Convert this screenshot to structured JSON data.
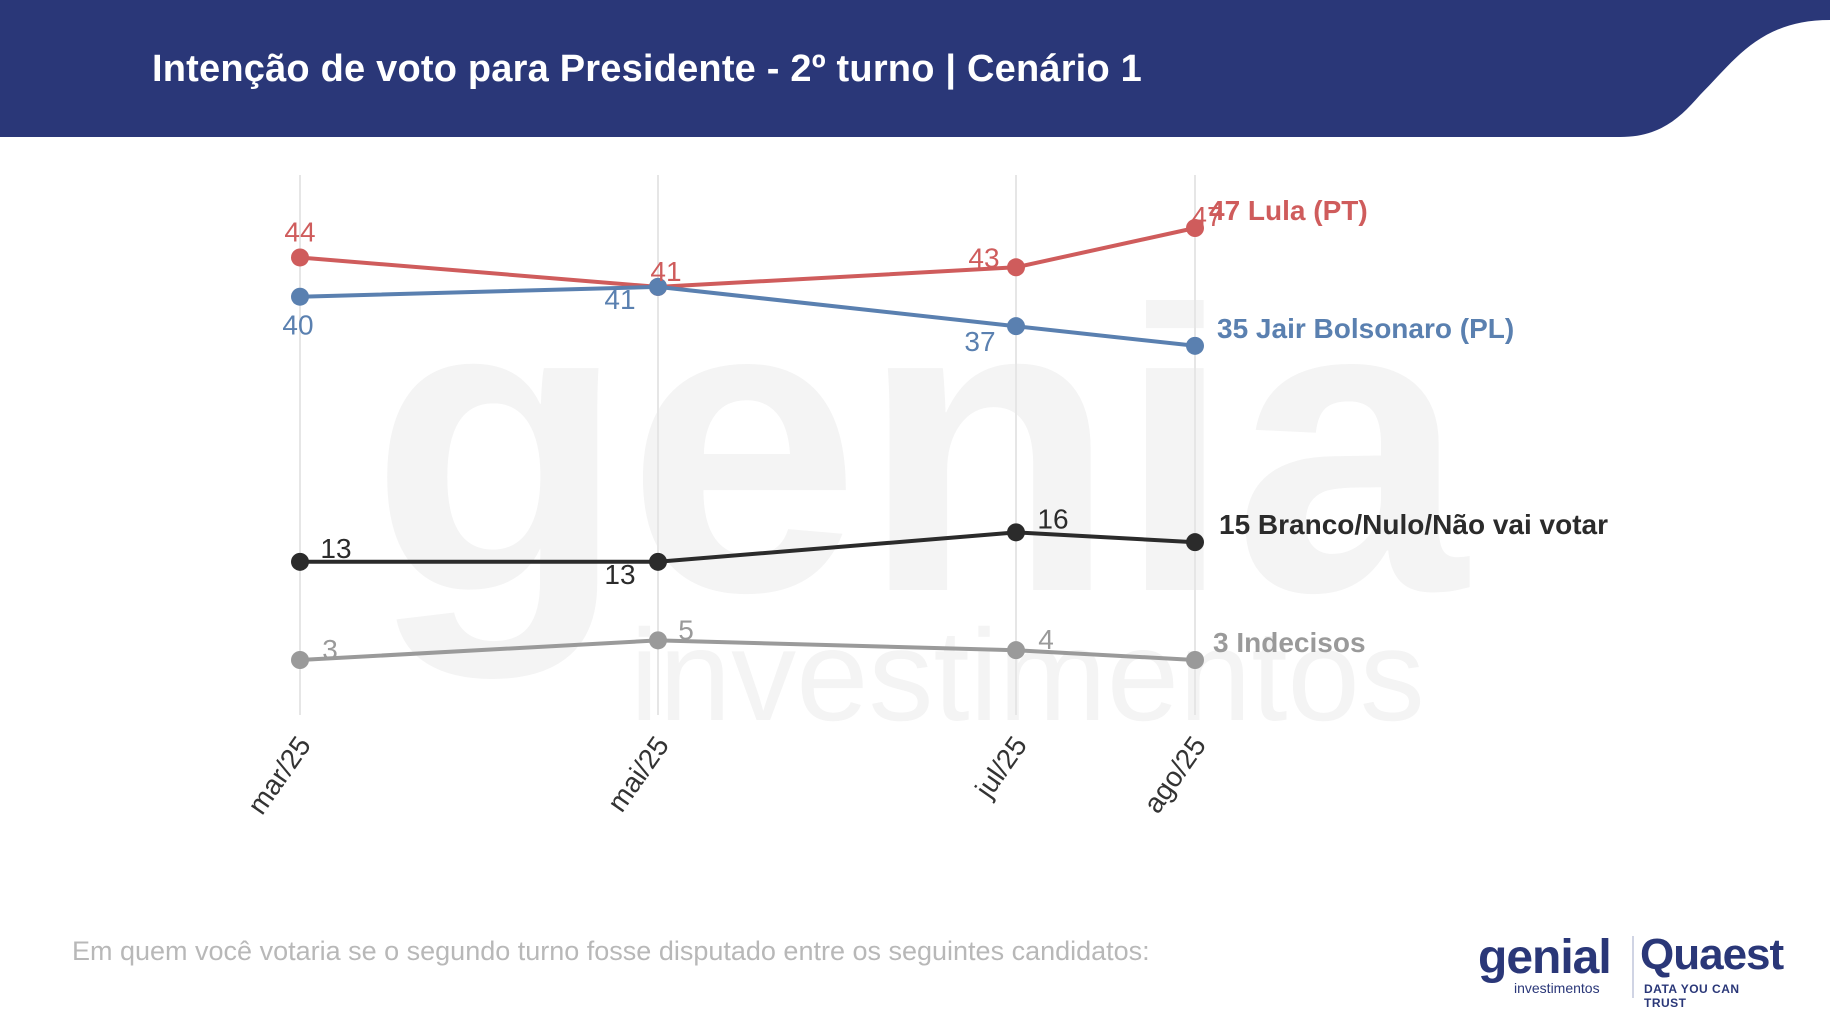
{
  "header": {
    "title": "Intenção de voto para Presidente - 2º turno | Cenário 1",
    "color": "#2a3778"
  },
  "footnote": "Em quem você votaria se o segundo turno fosse disputado entre os seguintes candidatos:",
  "logos": {
    "genial": "genial",
    "genial_sub": "investimentos",
    "quaest": "Quaest",
    "quaest_sub": "DATA YOU CAN TRUST",
    "watermark_top": "genial",
    "watermark_bottom": "investimentos"
  },
  "chart_data": {
    "type": "line",
    "x": [
      "2025-03",
      "2025-05",
      "2025-07",
      "2025-08"
    ],
    "categories": [
      "mar/25",
      "mai/25",
      "jul/25",
      "ago/25"
    ],
    "ylim": [
      0,
      50
    ],
    "grid": "vertical",
    "xlabel": "",
    "ylabel": "",
    "series": [
      {
        "name": "Lula (PT)",
        "values": [
          44,
          41,
          43,
          47
        ],
        "color": "#cf5c5c",
        "end_label": "47 Lula (PT)"
      },
      {
        "name": "Jair Bolsonaro (PL)",
        "values": [
          40,
          41,
          37,
          35
        ],
        "color": "#5a80b0",
        "end_label": "35 Jair Bolsonaro (PL)"
      },
      {
        "name": "Branco/Nulo/Não vai votar",
        "values": [
          13,
          13,
          16,
          15
        ],
        "color": "#2b2b2b",
        "end_label": "15 Branco/Nulo/Não vai votar"
      },
      {
        "name": "Indecisos",
        "values": [
          3,
          5,
          4,
          3
        ],
        "color": "#9a9a9a",
        "end_label": "3 Indecisos"
      }
    ]
  }
}
